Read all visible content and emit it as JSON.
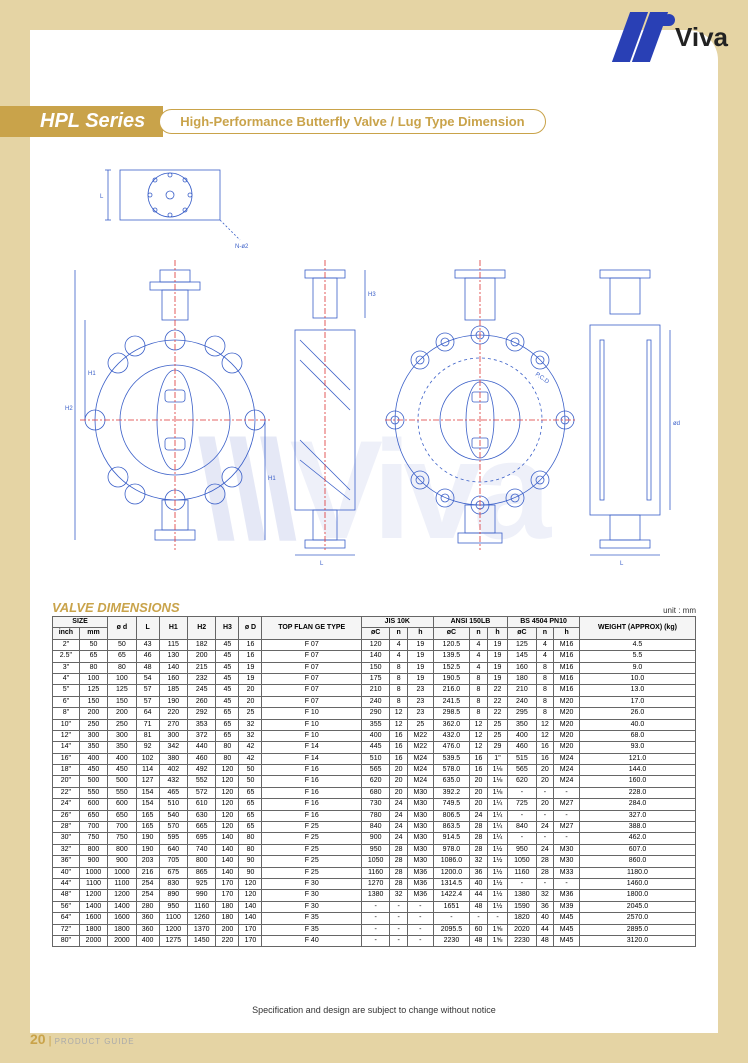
{
  "brand": {
    "name": "Viva"
  },
  "series": {
    "name": "HPL Series",
    "subtitle": "High-Performance Butterfly Valve / Lug Type Dimension"
  },
  "table_title": "VALVE DIMENSIONS",
  "unit": "unit : mm",
  "footnote": "Specification and design are subject to change without notice",
  "page": {
    "number": "20",
    "label": "PRODUCT GUIDE"
  },
  "colors": {
    "brand_blue": "#2940b5",
    "accent_gold": "#c9a34a",
    "line_blue": "#3a5fc8",
    "center_red": "#d33"
  },
  "columns": {
    "size_group": "SIZE",
    "size_inch": "inch",
    "size_mm": "mm",
    "d_small": "ø d",
    "L": "L",
    "H1": "H1",
    "H2": "H2",
    "H3": "H3",
    "D_big": "ø D",
    "top_flange": "TOP FLAN GE TYPE",
    "jis": "JIS 10K",
    "ansi": "ANSI 150LB",
    "bs": "BS 4504 PN10",
    "oC": "øC",
    "n": "n",
    "h": "h",
    "weight": "WEIGHT (APPROX) (kg)"
  },
  "rows": [
    {
      "inch": "2\"",
      "mm": "50",
      "d": "50",
      "L": "43",
      "H1": "115",
      "H2": "182",
      "H3": "45",
      "D": "16",
      "flange": "F 07",
      "jis_C": "120",
      "jis_n": "4",
      "jis_h": "19",
      "ansi_C": "120.5",
      "ansi_n": "4",
      "ansi_h": "19",
      "bs_C": "125",
      "bs_n": "4",
      "bs_h": "M16",
      "wt": "4.5"
    },
    {
      "inch": "2.5\"",
      "mm": "65",
      "d": "65",
      "L": "46",
      "H1": "130",
      "H2": "200",
      "H3": "45",
      "D": "16",
      "flange": "F 07",
      "jis_C": "140",
      "jis_n": "4",
      "jis_h": "19",
      "ansi_C": "139.5",
      "ansi_n": "4",
      "ansi_h": "19",
      "bs_C": "145",
      "bs_n": "4",
      "bs_h": "M16",
      "wt": "5.5"
    },
    {
      "inch": "3\"",
      "mm": "80",
      "d": "80",
      "L": "48",
      "H1": "140",
      "H2": "215",
      "H3": "45",
      "D": "19",
      "flange": "F 07",
      "jis_C": "150",
      "jis_n": "8",
      "jis_h": "19",
      "ansi_C": "152.5",
      "ansi_n": "4",
      "ansi_h": "19",
      "bs_C": "160",
      "bs_n": "8",
      "bs_h": "M16",
      "wt": "9.0"
    },
    {
      "inch": "4\"",
      "mm": "100",
      "d": "100",
      "L": "54",
      "H1": "160",
      "H2": "232",
      "H3": "45",
      "D": "19",
      "flange": "F 07",
      "jis_C": "175",
      "jis_n": "8",
      "jis_h": "19",
      "ansi_C": "190.5",
      "ansi_n": "8",
      "ansi_h": "19",
      "bs_C": "180",
      "bs_n": "8",
      "bs_h": "M16",
      "wt": "10.0"
    },
    {
      "inch": "5\"",
      "mm": "125",
      "d": "125",
      "L": "57",
      "H1": "185",
      "H2": "245",
      "H3": "45",
      "D": "20",
      "flange": "F 07",
      "jis_C": "210",
      "jis_n": "8",
      "jis_h": "23",
      "ansi_C": "216.0",
      "ansi_n": "8",
      "ansi_h": "22",
      "bs_C": "210",
      "bs_n": "8",
      "bs_h": "M16",
      "wt": "13.0"
    },
    {
      "inch": "6\"",
      "mm": "150",
      "d": "150",
      "L": "57",
      "H1": "190",
      "H2": "260",
      "H3": "45",
      "D": "20",
      "flange": "F 07",
      "jis_C": "240",
      "jis_n": "8",
      "jis_h": "23",
      "ansi_C": "241.5",
      "ansi_n": "8",
      "ansi_h": "22",
      "bs_C": "240",
      "bs_n": "8",
      "bs_h": "M20",
      "wt": "17.0"
    },
    {
      "inch": "8\"",
      "mm": "200",
      "d": "200",
      "L": "64",
      "H1": "220",
      "H2": "292",
      "H3": "65",
      "D": "25",
      "flange": "F 10",
      "jis_C": "290",
      "jis_n": "12",
      "jis_h": "23",
      "ansi_C": "298.5",
      "ansi_n": "8",
      "ansi_h": "22",
      "bs_C": "295",
      "bs_n": "8",
      "bs_h": "M20",
      "wt": "26.0"
    },
    {
      "inch": "10\"",
      "mm": "250",
      "d": "250",
      "L": "71",
      "H1": "270",
      "H2": "353",
      "H3": "65",
      "D": "32",
      "flange": "F 10",
      "jis_C": "355",
      "jis_n": "12",
      "jis_h": "25",
      "ansi_C": "362.0",
      "ansi_n": "12",
      "ansi_h": "25",
      "bs_C": "350",
      "bs_n": "12",
      "bs_h": "M20",
      "wt": "40.0"
    },
    {
      "inch": "12\"",
      "mm": "300",
      "d": "300",
      "L": "81",
      "H1": "300",
      "H2": "372",
      "H3": "65",
      "D": "32",
      "flange": "F 10",
      "jis_C": "400",
      "jis_n": "16",
      "jis_h": "M22",
      "ansi_C": "432.0",
      "ansi_n": "12",
      "ansi_h": "25",
      "bs_C": "400",
      "bs_n": "12",
      "bs_h": "M20",
      "wt": "68.0"
    },
    {
      "inch": "14\"",
      "mm": "350",
      "d": "350",
      "L": "92",
      "H1": "342",
      "H2": "440",
      "H3": "80",
      "D": "42",
      "flange": "F 14",
      "jis_C": "445",
      "jis_n": "16",
      "jis_h": "M22",
      "ansi_C": "476.0",
      "ansi_n": "12",
      "ansi_h": "29",
      "bs_C": "460",
      "bs_n": "16",
      "bs_h": "M20",
      "wt": "93.0"
    },
    {
      "inch": "16\"",
      "mm": "400",
      "d": "400",
      "L": "102",
      "H1": "380",
      "H2": "460",
      "H3": "80",
      "D": "42",
      "flange": "F 14",
      "jis_C": "510",
      "jis_n": "16",
      "jis_h": "M24",
      "ansi_C": "539.5",
      "ansi_n": "16",
      "ansi_h": "1\"",
      "bs_C": "515",
      "bs_n": "16",
      "bs_h": "M24",
      "wt": "121.0"
    },
    {
      "inch": "18\"",
      "mm": "450",
      "d": "450",
      "L": "114",
      "H1": "402",
      "H2": "492",
      "H3": "120",
      "D": "50",
      "flange": "F 16",
      "jis_C": "565",
      "jis_n": "20",
      "jis_h": "M24",
      "ansi_C": "578.0",
      "ansi_n": "16",
      "ansi_h": "1⅛",
      "bs_C": "565",
      "bs_n": "20",
      "bs_h": "M24",
      "wt": "144.0"
    },
    {
      "inch": "20\"",
      "mm": "500",
      "d": "500",
      "L": "127",
      "H1": "432",
      "H2": "552",
      "H3": "120",
      "D": "50",
      "flange": "F 16",
      "jis_C": "620",
      "jis_n": "20",
      "jis_h": "M24",
      "ansi_C": "635.0",
      "ansi_n": "20",
      "ansi_h": "1⅛",
      "bs_C": "620",
      "bs_n": "20",
      "bs_h": "M24",
      "wt": "160.0"
    },
    {
      "inch": "22\"",
      "mm": "550",
      "d": "550",
      "L": "154",
      "H1": "465",
      "H2": "572",
      "H3": "120",
      "D": "65",
      "flange": "F 16",
      "jis_C": "680",
      "jis_n": "20",
      "jis_h": "M30",
      "ansi_C": "392.2",
      "ansi_n": "20",
      "ansi_h": "1⅛",
      "bs_C": "-",
      "bs_n": "-",
      "bs_h": "-",
      "wt": "228.0"
    },
    {
      "inch": "24\"",
      "mm": "600",
      "d": "600",
      "L": "154",
      "H1": "510",
      "H2": "610",
      "H3": "120",
      "D": "65",
      "flange": "F 16",
      "jis_C": "730",
      "jis_n": "24",
      "jis_h": "M30",
      "ansi_C": "749.5",
      "ansi_n": "20",
      "ansi_h": "1¼",
      "bs_C": "725",
      "bs_n": "20",
      "bs_h": "M27",
      "wt": "284.0"
    },
    {
      "inch": "26\"",
      "mm": "650",
      "d": "650",
      "L": "165",
      "H1": "540",
      "H2": "630",
      "H3": "120",
      "D": "65",
      "flange": "F 16",
      "jis_C": "780",
      "jis_n": "24",
      "jis_h": "M30",
      "ansi_C": "806.5",
      "ansi_n": "24",
      "ansi_h": "1¼",
      "bs_C": "-",
      "bs_n": "-",
      "bs_h": "-",
      "wt": "327.0"
    },
    {
      "inch": "28\"",
      "mm": "700",
      "d": "700",
      "L": "165",
      "H1": "570",
      "H2": "665",
      "H3": "120",
      "D": "65",
      "flange": "F 25",
      "jis_C": "840",
      "jis_n": "24",
      "jis_h": "M30",
      "ansi_C": "863.5",
      "ansi_n": "28",
      "ansi_h": "1¼",
      "bs_C": "840",
      "bs_n": "24",
      "bs_h": "M27",
      "wt": "388.0"
    },
    {
      "inch": "30\"",
      "mm": "750",
      "d": "750",
      "L": "190",
      "H1": "595",
      "H2": "695",
      "H3": "140",
      "D": "80",
      "flange": "F 25",
      "jis_C": "900",
      "jis_n": "24",
      "jis_h": "M30",
      "ansi_C": "914.5",
      "ansi_n": "28",
      "ansi_h": "1¼",
      "bs_C": "-",
      "bs_n": "-",
      "bs_h": "-",
      "wt": "462.0"
    },
    {
      "inch": "32\"",
      "mm": "800",
      "d": "800",
      "L": "190",
      "H1": "640",
      "H2": "740",
      "H3": "140",
      "D": "80",
      "flange": "F 25",
      "jis_C": "950",
      "jis_n": "28",
      "jis_h": "M30",
      "ansi_C": "978.0",
      "ansi_n": "28",
      "ansi_h": "1½",
      "bs_C": "950",
      "bs_n": "24",
      "bs_h": "M30",
      "wt": "607.0"
    },
    {
      "inch": "36\"",
      "mm": "900",
      "d": "900",
      "L": "203",
      "H1": "705",
      "H2": "800",
      "H3": "140",
      "D": "90",
      "flange": "F 25",
      "jis_C": "1050",
      "jis_n": "28",
      "jis_h": "M30",
      "ansi_C": "1086.0",
      "ansi_n": "32",
      "ansi_h": "1½",
      "bs_C": "1050",
      "bs_n": "28",
      "bs_h": "M30",
      "wt": "860.0"
    },
    {
      "inch": "40\"",
      "mm": "1000",
      "d": "1000",
      "L": "216",
      "H1": "675",
      "H2": "865",
      "H3": "140",
      "D": "90",
      "flange": "F 25",
      "jis_C": "1160",
      "jis_n": "28",
      "jis_h": "M36",
      "ansi_C": "1200.0",
      "ansi_n": "36",
      "ansi_h": "1½",
      "bs_C": "1160",
      "bs_n": "28",
      "bs_h": "M33",
      "wt": "1180.0"
    },
    {
      "inch": "44\"",
      "mm": "1100",
      "d": "1100",
      "L": "254",
      "H1": "830",
      "H2": "925",
      "H3": "170",
      "D": "120",
      "flange": "F 30",
      "jis_C": "1270",
      "jis_n": "28",
      "jis_h": "M36",
      "ansi_C": "1314.5",
      "ansi_n": "40",
      "ansi_h": "1½",
      "bs_C": "-",
      "bs_n": "-",
      "bs_h": "-",
      "wt": "1460.0"
    },
    {
      "inch": "48\"",
      "mm": "1200",
      "d": "1200",
      "L": "254",
      "H1": "890",
      "H2": "990",
      "H3": "170",
      "D": "120",
      "flange": "F 30",
      "jis_C": "1380",
      "jis_n": "32",
      "jis_h": "M36",
      "ansi_C": "1422.4",
      "ansi_n": "44",
      "ansi_h": "1½",
      "bs_C": "1380",
      "bs_n": "32",
      "bs_h": "M36",
      "wt": "1800.0"
    },
    {
      "inch": "56\"",
      "mm": "1400",
      "d": "1400",
      "L": "280",
      "H1": "950",
      "H2": "1160",
      "H3": "180",
      "D": "140",
      "flange": "F 30",
      "jis_C": "-",
      "jis_n": "-",
      "jis_h": "-",
      "ansi_C": "1651",
      "ansi_n": "48",
      "ansi_h": "1½",
      "bs_C": "1590",
      "bs_n": "36",
      "bs_h": "M39",
      "wt": "2045.0"
    },
    {
      "inch": "64\"",
      "mm": "1600",
      "d": "1600",
      "L": "360",
      "H1": "1100",
      "H2": "1260",
      "H3": "180",
      "D": "140",
      "flange": "F 35",
      "jis_C": "-",
      "jis_n": "-",
      "jis_h": "-",
      "ansi_C": "-",
      "ansi_n": "-",
      "ansi_h": "-",
      "bs_C": "1820",
      "bs_n": "40",
      "bs_h": "M45",
      "wt": "2570.0"
    },
    {
      "inch": "72\"",
      "mm": "1800",
      "d": "1800",
      "L": "360",
      "H1": "1200",
      "H2": "1370",
      "H3": "200",
      "D": "170",
      "flange": "F 35",
      "jis_C": "-",
      "jis_n": "-",
      "jis_h": "-",
      "ansi_C": "2095.5",
      "ansi_n": "60",
      "ansi_h": "1⅝",
      "bs_C": "2020",
      "bs_n": "44",
      "bs_h": "M45",
      "wt": "2895.0"
    },
    {
      "inch": "80\"",
      "mm": "2000",
      "d": "2000",
      "L": "400",
      "H1": "1275",
      "H2": "1450",
      "H3": "220",
      "D": "170",
      "flange": "F 40",
      "jis_C": "-",
      "jis_n": "-",
      "jis_h": "-",
      "ansi_C": "2230",
      "ansi_n": "48",
      "ansi_h": "1⅝",
      "bs_C": "2230",
      "bs_n": "48",
      "bs_h": "M45",
      "wt": "3120.0"
    }
  ]
}
